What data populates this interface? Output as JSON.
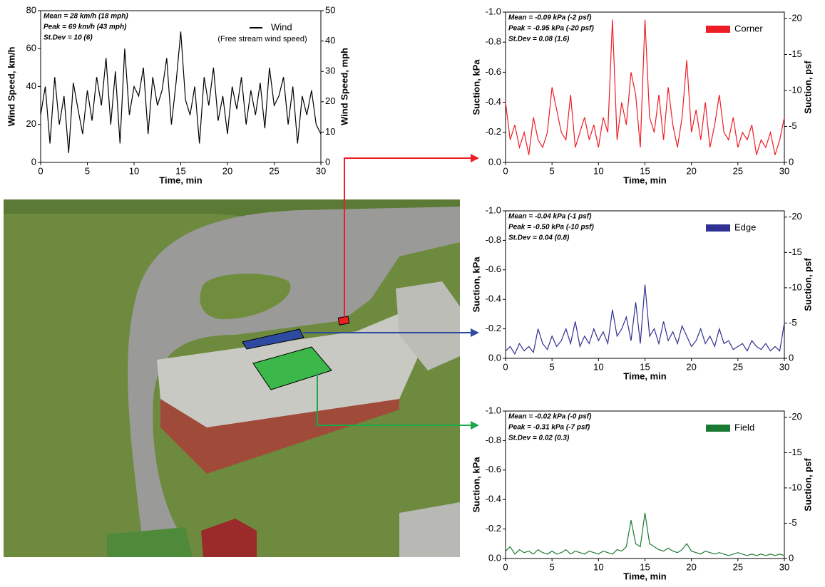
{
  "chart_data": [
    {
      "type": "line",
      "x": [
        0,
        0.5,
        1,
        1.5,
        2,
        2.5,
        3,
        3.5,
        4,
        4.5,
        5,
        5.5,
        6,
        6.5,
        7,
        7.5,
        8,
        8.5,
        9,
        9.5,
        10,
        10.5,
        11,
        11.5,
        12,
        12.5,
        13,
        13.5,
        14,
        14.5,
        15,
        15.5,
        16,
        16.5,
        17,
        17.5,
        18,
        18.5,
        19,
        19.5,
        20,
        20.5,
        21,
        21.5,
        22,
        22.5,
        23,
        23.5,
        24,
        24.5,
        25,
        25.5,
        26,
        26.5,
        27,
        27.5,
        28,
        28.5,
        29,
        29.5,
        30
      ],
      "series": [
        {
          "name": "Wind",
          "color": "#000000",
          "values": [
            25,
            40,
            10,
            45,
            20,
            35,
            5,
            42,
            28,
            15,
            38,
            22,
            45,
            30,
            55,
            20,
            48,
            10,
            60,
            25,
            40,
            35,
            50,
            15,
            45,
            30,
            38,
            55,
            20,
            42,
            69,
            33,
            25,
            40,
            10,
            45,
            30,
            50,
            22,
            35,
            15,
            40,
            28,
            45,
            20,
            38,
            25,
            42,
            18,
            50,
            30,
            35,
            45,
            20,
            40,
            10,
            35,
            25,
            38,
            20,
            15
          ]
        }
      ],
      "annotations": [
        "Mean = 28 km/h (18 mph)",
        "Peak = 69 km/h (43 mph)",
        "St.Dev = 10 (6)",
        "(Free stream wind speed)"
      ],
      "x_label": "Time, min",
      "y_label": "Wind Speed, km/h",
      "y2_label": "Wind Speed, mph",
      "xlim": [
        0,
        30
      ],
      "xticks": [
        0,
        5,
        10,
        15,
        20,
        25,
        30
      ],
      "ylim": [
        0,
        80
      ],
      "yticks": [
        0,
        20,
        40,
        60,
        80
      ],
      "y2lim": [
        0,
        50
      ],
      "y2ticks": [
        0,
        10,
        20,
        30,
        40,
        50
      ],
      "legend": "top-right"
    },
    {
      "type": "line",
      "x": [
        0,
        0.5,
        1,
        1.5,
        2,
        2.5,
        3,
        3.5,
        4,
        4.5,
        5,
        5.5,
        6,
        6.5,
        7,
        7.5,
        8,
        8.5,
        9,
        9.5,
        10,
        10.5,
        11,
        11.5,
        12,
        12.5,
        13,
        13.5,
        14,
        14.5,
        15,
        15.5,
        16,
        16.5,
        17,
        17.5,
        18,
        18.5,
        19,
        19.5,
        20,
        20.5,
        21,
        21.5,
        22,
        22.5,
        23,
        23.5,
        24,
        24.5,
        25,
        25.5,
        26,
        26.5,
        27,
        27.5,
        28,
        28.5,
        29,
        29.5,
        30
      ],
      "series": [
        {
          "name": "Corner",
          "color": "#ee1c24",
          "values": [
            -0.4,
            -0.15,
            -0.25,
            -0.1,
            -0.2,
            -0.05,
            -0.3,
            -0.15,
            -0.1,
            -0.2,
            -0.5,
            -0.35,
            -0.2,
            -0.15,
            -0.45,
            -0.1,
            -0.2,
            -0.3,
            -0.15,
            -0.25,
            -0.1,
            -0.3,
            -0.2,
            -0.95,
            -0.15,
            -0.4,
            -0.25,
            -0.6,
            -0.45,
            -0.1,
            -0.95,
            -0.3,
            -0.2,
            -0.45,
            -0.15,
            -0.5,
            -0.25,
            -0.1,
            -0.3,
            -0.68,
            -0.2,
            -0.35,
            -0.15,
            -0.4,
            -0.1,
            -0.25,
            -0.45,
            -0.2,
            -0.15,
            -0.3,
            -0.1,
            -0.2,
            -0.15,
            -0.25,
            -0.05,
            -0.15,
            -0.1,
            -0.2,
            -0.05,
            -0.15,
            -0.3
          ]
        }
      ],
      "annotations": [
        "Mean = -0.09 kPa (-2 psf)",
        "Peak = -0.95 kPa (-20 psf)",
        "St.Dev = 0.08 (1.6)"
      ],
      "x_label": "Time, min",
      "y_label": "Suction, kPa",
      "y2_label": "Suction, psf",
      "xlim": [
        0,
        30
      ],
      "xticks": [
        0,
        5,
        10,
        15,
        20,
        25,
        30
      ],
      "ylim": [
        0,
        -1
      ],
      "yticks": [
        {
          "value": 0,
          "label": "0.0"
        },
        -0.2,
        -0.4,
        -0.6,
        -0.8,
        {
          "value": -1,
          "label": "-1.0"
        }
      ],
      "y2lim": [
        0,
        -20.885
      ],
      "y2ticks": [
        0,
        -5,
        -10,
        -15,
        -20
      ],
      "legend": "top-right"
    },
    {
      "type": "line",
      "x": [
        0,
        0.5,
        1,
        1.5,
        2,
        2.5,
        3,
        3.5,
        4,
        4.5,
        5,
        5.5,
        6,
        6.5,
        7,
        7.5,
        8,
        8.5,
        9,
        9.5,
        10,
        10.5,
        11,
        11.5,
        12,
        12.5,
        13,
        13.5,
        14,
        14.5,
        15,
        15.5,
        16,
        16.5,
        17,
        17.5,
        18,
        18.5,
        19,
        19.5,
        20,
        20.5,
        21,
        21.5,
        22,
        22.5,
        23,
        23.5,
        24,
        24.5,
        25,
        25.5,
        26,
        26.5,
        27,
        27.5,
        28,
        28.5,
        29,
        29.5,
        30
      ],
      "series": [
        {
          "name": "Edge",
          "color": "#2e3192",
          "values": [
            -0.05,
            -0.08,
            -0.03,
            -0.1,
            -0.05,
            -0.08,
            -0.04,
            -0.2,
            -0.1,
            -0.06,
            -0.15,
            -0.08,
            -0.12,
            -0.2,
            -0.1,
            -0.25,
            -0.08,
            -0.15,
            -0.1,
            -0.2,
            -0.12,
            -0.18,
            -0.1,
            -0.33,
            -0.15,
            -0.2,
            -0.28,
            -0.12,
            -0.38,
            -0.1,
            -0.5,
            -0.15,
            -0.2,
            -0.1,
            -0.25,
            -0.12,
            -0.18,
            -0.1,
            -0.22,
            -0.15,
            -0.08,
            -0.12,
            -0.2,
            -0.1,
            -0.15,
            -0.08,
            -0.2,
            -0.1,
            -0.12,
            -0.06,
            -0.08,
            -0.1,
            -0.05,
            -0.12,
            -0.08,
            -0.06,
            -0.1,
            -0.05,
            -0.08,
            -0.05,
            -0.24
          ]
        }
      ],
      "annotations": [
        "Mean = -0.04 kPa (-1 psf)",
        "Peak = -0.50 kPa (-10 psf)",
        "St.Dev = 0.04 (0.8)"
      ],
      "x_label": "Time, min",
      "y_label": "Suction, kPa",
      "y2_label": "Suction, psf",
      "xlim": [
        0,
        30
      ],
      "xticks": [
        0,
        5,
        10,
        15,
        20,
        25,
        30
      ],
      "ylim": [
        0,
        -1
      ],
      "yticks": [
        {
          "value": 0,
          "label": "0.0"
        },
        -0.2,
        -0.4,
        -0.6,
        -0.8,
        {
          "value": -1,
          "label": "-1.0"
        }
      ],
      "y2lim": [
        0,
        -20.885
      ],
      "y2ticks": [
        0,
        -5,
        -10,
        -15,
        -20
      ],
      "legend": "top-right"
    },
    {
      "type": "line",
      "x": [
        0,
        0.5,
        1,
        1.5,
        2,
        2.5,
        3,
        3.5,
        4,
        4.5,
        5,
        5.5,
        6,
        6.5,
        7,
        7.5,
        8,
        8.5,
        9,
        9.5,
        10,
        10.5,
        11,
        11.5,
        12,
        12.5,
        13,
        13.5,
        14,
        14.5,
        15,
        15.5,
        16,
        16.5,
        17,
        17.5,
        18,
        18.5,
        19,
        19.5,
        20,
        20.5,
        21,
        21.5,
        22,
        22.5,
        23,
        23.5,
        24,
        24.5,
        25,
        25.5,
        26,
        26.5,
        27,
        27.5,
        28,
        28.5,
        29,
        29.5,
        30
      ],
      "series": [
        {
          "name": "Field",
          "color": "#1a7a32",
          "values": [
            -0.05,
            -0.08,
            -0.03,
            -0.06,
            -0.04,
            -0.05,
            -0.03,
            -0.06,
            -0.04,
            -0.03,
            -0.05,
            -0.03,
            -0.04,
            -0.06,
            -0.03,
            -0.05,
            -0.04,
            -0.03,
            -0.05,
            -0.04,
            -0.03,
            -0.05,
            -0.04,
            -0.03,
            -0.06,
            -0.05,
            -0.08,
            -0.26,
            -0.1,
            -0.08,
            -0.31,
            -0.1,
            -0.08,
            -0.06,
            -0.05,
            -0.07,
            -0.05,
            -0.04,
            -0.06,
            -0.1,
            -0.05,
            -0.04,
            -0.03,
            -0.05,
            -0.04,
            -0.03,
            -0.04,
            -0.03,
            -0.02,
            -0.03,
            -0.04,
            -0.03,
            -0.02,
            -0.03,
            -0.02,
            -0.03,
            -0.02,
            -0.03,
            -0.02,
            -0.03,
            -0.02
          ]
        }
      ],
      "annotations": [
        "Mean = -0.02 kPa (-0 psf)",
        "Peak = -0.31 kPa (-7 psf)",
        "St.Dev = 0.02 (0.3)"
      ],
      "x_label": "Time, min",
      "y_label": "Suction, kPa",
      "y2_label": "Suction, psf",
      "xlim": [
        0,
        30
      ],
      "xticks": [
        0,
        5,
        10,
        15,
        20,
        25,
        30
      ],
      "ylim": [
        0,
        -1
      ],
      "yticks": [
        {
          "value": 0,
          "label": "0.0"
        },
        -0.2,
        -0.4,
        -0.6,
        -0.8,
        {
          "value": -1,
          "label": "-1.0"
        }
      ],
      "y2lim": [
        0,
        -20.885
      ],
      "y2ticks": [
        0,
        -5,
        -10,
        -15,
        -20
      ],
      "legend": "top-right"
    }
  ]
}
